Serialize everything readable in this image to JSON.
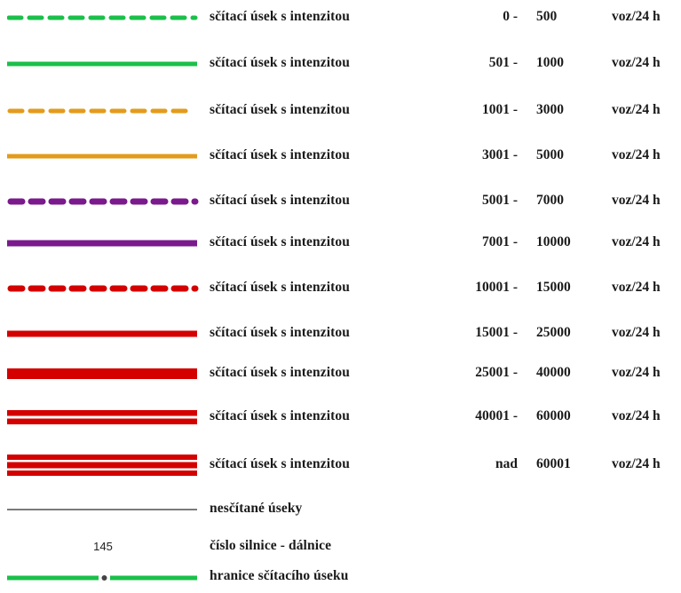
{
  "rows": [
    {
      "label": "sčítací úsek s intenzitou",
      "from": "0 -",
      "to": "500",
      "unit": "voz/24 h"
    },
    {
      "label": "sčítací úsek s intenzitou",
      "from": "501 -",
      "to": "1000",
      "unit": "voz/24 h"
    },
    {
      "label": "sčítací úsek s intenzitou",
      "from": "1001 -",
      "to": "3000",
      "unit": "voz/24 h"
    },
    {
      "label": "sčítací úsek s intenzitou",
      "from": "3001 -",
      "to": "5000",
      "unit": "voz/24 h"
    },
    {
      "label": "sčítací úsek s intenzitou",
      "from": "5001 -",
      "to": "7000",
      "unit": "voz/24 h"
    },
    {
      "label": "sčítací úsek s intenzitou",
      "from": "7001 -",
      "to": "10000",
      "unit": "voz/24 h"
    },
    {
      "label": "sčítací úsek s intenzitou",
      "from": "10001 -",
      "to": "15000",
      "unit": "voz/24 h"
    },
    {
      "label": "sčítací úsek s intenzitou",
      "from": "15001 -",
      "to": "25000",
      "unit": "voz/24 h"
    },
    {
      "label": "sčítací úsek s intenzitou",
      "from": "25001 -",
      "to": "40000",
      "unit": "voz/24 h"
    },
    {
      "label": "sčítací úsek s intenzitou",
      "from": "40001 -",
      "to": "60000",
      "unit": "voz/24 h"
    },
    {
      "label": "sčítací úsek s intenzitou",
      "from": "nad",
      "to": "60001",
      "unit": "voz/24 h"
    }
  ],
  "extra": {
    "uncounted_label": "nesčítané úseky",
    "road_number_sample": "145",
    "road_number_label": "číslo silnice - dálnice",
    "boundary_label": "hranice sčítacího úseku"
  },
  "colors": {
    "green": "#1bbf4a",
    "orange": "#e39b1c",
    "purple": "#7a1a8c",
    "red": "#d40000",
    "gray": "#7a7a7a"
  }
}
